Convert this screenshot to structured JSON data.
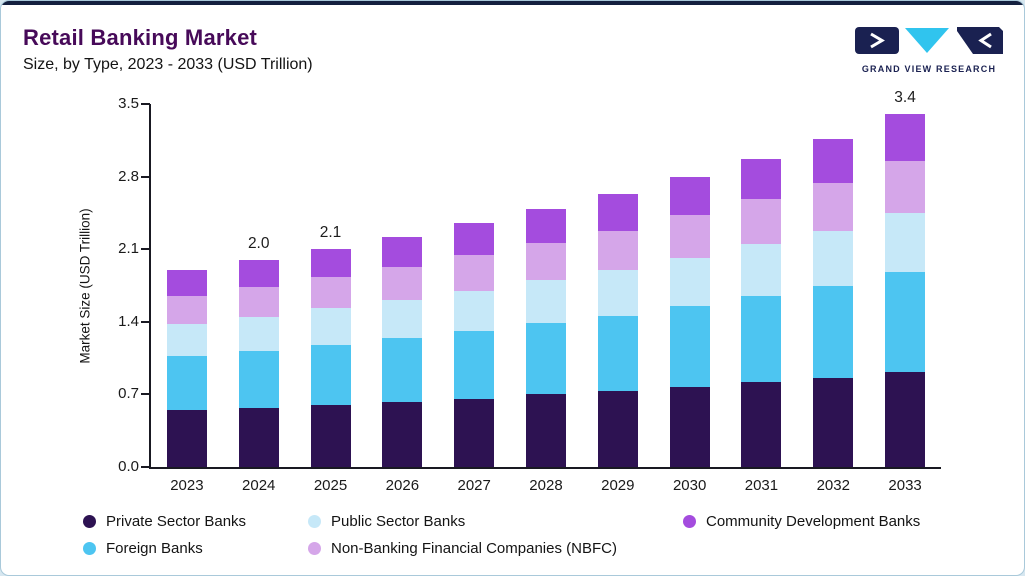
{
  "header": {
    "title": "Retail Banking Market",
    "subtitle": "Size, by Type, 2023 - 2033 (USD Trillion)",
    "logo_text": "GRAND VIEW RESEARCH"
  },
  "colors": {
    "accent_bar": "#14203f",
    "title": "#470a59",
    "logo_navy": "#1a2151",
    "logo_cyan": "#30c4ee"
  },
  "chart_data": {
    "type": "bar",
    "stacked": true,
    "title": "Retail Banking Market",
    "subtitle": "Size, by Type, 2023 - 2033 (USD Trillion)",
    "xlabel": "",
    "ylabel": "Market Size (USD Trillion)",
    "ylim": [
      0,
      3.5
    ],
    "yticks": [
      0.0,
      0.7,
      1.4,
      2.1,
      2.8,
      3.5
    ],
    "grid": false,
    "legend_position": "bottom",
    "categories": [
      "2023",
      "2024",
      "2025",
      "2026",
      "2027",
      "2028",
      "2029",
      "2030",
      "2031",
      "2032",
      "2033"
    ],
    "series": [
      {
        "name": "Private Sector Banks",
        "color": "#2d1252",
        "values": [
          0.55,
          0.57,
          0.6,
          0.63,
          0.66,
          0.7,
          0.73,
          0.77,
          0.82,
          0.86,
          0.92
        ]
      },
      {
        "name": "Foreign Banks",
        "color": "#4dc5f1",
        "values": [
          0.52,
          0.55,
          0.58,
          0.61,
          0.65,
          0.69,
          0.73,
          0.78,
          0.83,
          0.89,
          0.96
        ]
      },
      {
        "name": "Public Sector Banks",
        "color": "#c6e8f8",
        "values": [
          0.31,
          0.33,
          0.35,
          0.37,
          0.39,
          0.41,
          0.44,
          0.47,
          0.5,
          0.53,
          0.57
        ]
      },
      {
        "name": "Non-Banking Financial Companies (NBFC)",
        "color": "#d5a6e9",
        "values": [
          0.27,
          0.29,
          0.3,
          0.32,
          0.34,
          0.36,
          0.38,
          0.41,
          0.43,
          0.46,
          0.5
        ]
      },
      {
        "name": "Community Development Banks",
        "color": "#a44cde",
        "values": [
          0.25,
          0.26,
          0.27,
          0.29,
          0.31,
          0.33,
          0.35,
          0.37,
          0.39,
          0.42,
          0.45
        ]
      }
    ],
    "bar_labels": [
      {
        "category": "2024",
        "text": "2.0"
      },
      {
        "category": "2025",
        "text": "2.1"
      },
      {
        "category": "2033",
        "text": "3.4"
      }
    ]
  },
  "legend": {
    "items": [
      {
        "label": "Private Sector Banks",
        "color": "#2d1252",
        "row": 1,
        "col": 1
      },
      {
        "label": "Public Sector Banks",
        "color": "#c6e8f8",
        "row": 1,
        "col": 2
      },
      {
        "label": "Community Development Banks",
        "color": "#a44cde",
        "row": 1,
        "col": 3
      },
      {
        "label": "Foreign Banks",
        "color": "#4dc5f1",
        "row": 2,
        "col": 1
      },
      {
        "label": "Non-Banking Financial Companies (NBFC)",
        "color": "#d5a6e9",
        "row": 2,
        "col": 2
      }
    ]
  }
}
